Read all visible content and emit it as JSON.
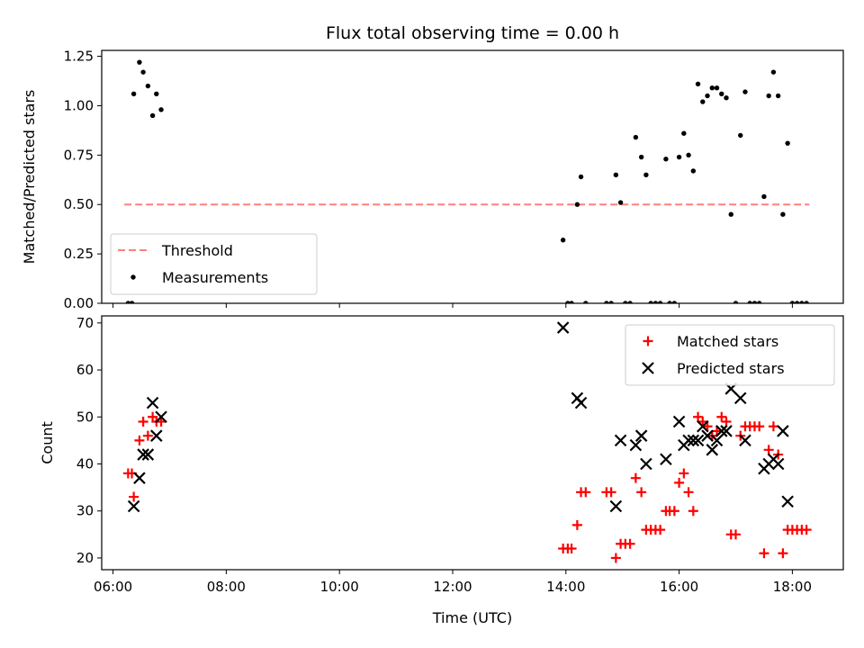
{
  "chart_data": [
    {
      "type": "scatter",
      "title": "Flux total observing time = 0.00 h",
      "xlabel": "",
      "ylabel": "Matched/Predicted stars",
      "xlim": [
        "05:48",
        "18:54"
      ],
      "ylim": [
        0,
        1.28
      ],
      "xticks": [
        "06:00",
        "08:00",
        "10:00",
        "12:00",
        "14:00",
        "16:00",
        "18:00"
      ],
      "yticks": [
        "0.00",
        "0.25",
        "0.50",
        "0.75",
        "1.00",
        "1.25"
      ],
      "legend_position": "lower-left",
      "threshold": {
        "name": "Threshold",
        "value": 0.5,
        "x_start": "06:12",
        "x_end": "18:18",
        "color": "#ff7f7f",
        "style": "dashed"
      },
      "series": [
        {
          "name": "Measurements",
          "color": "#000000",
          "marker": "dot",
          "points": [
            [
              "06:16",
              0.0
            ],
            [
              "06:20",
              0.0
            ],
            [
              "06:22",
              1.06
            ],
            [
              "06:28",
              1.22
            ],
            [
              "06:32",
              1.17
            ],
            [
              "06:37",
              1.1
            ],
            [
              "06:42",
              0.95
            ],
            [
              "06:46",
              1.06
            ],
            [
              "06:51",
              0.98
            ],
            [
              "13:57",
              0.32
            ],
            [
              "14:02",
              0.0
            ],
            [
              "14:06",
              0.0
            ],
            [
              "14:12",
              0.5
            ],
            [
              "14:16",
              0.64
            ],
            [
              "14:21",
              0.0
            ],
            [
              "14:43",
              0.0
            ],
            [
              "14:48",
              0.0
            ],
            [
              "14:53",
              0.65
            ],
            [
              "14:58",
              0.51
            ],
            [
              "15:03",
              0.0
            ],
            [
              "15:08",
              0.0
            ],
            [
              "15:14",
              0.84
            ],
            [
              "15:20",
              0.74
            ],
            [
              "15:25",
              0.65
            ],
            [
              "15:30",
              0.0
            ],
            [
              "15:35",
              0.0
            ],
            [
              "15:40",
              0.0
            ],
            [
              "15:46",
              0.73
            ],
            [
              "15:50",
              0.0
            ],
            [
              "15:55",
              0.0
            ],
            [
              "16:00",
              0.74
            ],
            [
              "16:05",
              0.86
            ],
            [
              "16:10",
              0.75
            ],
            [
              "16:15",
              0.67
            ],
            [
              "16:20",
              1.11
            ],
            [
              "16:25",
              1.02
            ],
            [
              "16:30",
              1.05
            ],
            [
              "16:35",
              1.09
            ],
            [
              "16:40",
              1.09
            ],
            [
              "16:45",
              1.06
            ],
            [
              "16:50",
              1.04
            ],
            [
              "16:55",
              0.45
            ],
            [
              "17:00",
              0.0
            ],
            [
              "17:05",
              0.85
            ],
            [
              "17:10",
              1.07
            ],
            [
              "17:15",
              0.0
            ],
            [
              "17:20",
              0.0
            ],
            [
              "17:25",
              0.0
            ],
            [
              "17:30",
              0.54
            ],
            [
              "17:35",
              1.05
            ],
            [
              "17:40",
              1.17
            ],
            [
              "17:45",
              1.05
            ],
            [
              "17:50",
              0.45
            ],
            [
              "17:55",
              0.81
            ],
            [
              "18:00",
              0.0
            ],
            [
              "18:05",
              0.0
            ],
            [
              "18:10",
              0.0
            ],
            [
              "18:15",
              0.0
            ]
          ]
        }
      ]
    },
    {
      "type": "scatter",
      "title": "",
      "xlabel": "Time (UTC)",
      "ylabel": "Count",
      "xlim": [
        "05:48",
        "18:54"
      ],
      "ylim": [
        17.5,
        71.5
      ],
      "xticks": [
        "06:00",
        "08:00",
        "10:00",
        "12:00",
        "14:00",
        "16:00",
        "18:00"
      ],
      "yticks": [
        "20",
        "30",
        "40",
        "50",
        "60",
        "70"
      ],
      "legend_position": "top-right",
      "series": [
        {
          "name": "Matched stars",
          "color": "#ff0000",
          "marker": "plus",
          "points": [
            [
              "06:16",
              38
            ],
            [
              "06:20",
              38
            ],
            [
              "06:22",
              33
            ],
            [
              "06:28",
              45
            ],
            [
              "06:32",
              49
            ],
            [
              "06:37",
              46
            ],
            [
              "06:42",
              50
            ],
            [
              "06:46",
              49
            ],
            [
              "06:51",
              49
            ],
            [
              "13:57",
              22
            ],
            [
              "14:02",
              22
            ],
            [
              "14:06",
              22
            ],
            [
              "14:12",
              27
            ],
            [
              "14:16",
              34
            ],
            [
              "14:21",
              34
            ],
            [
              "14:43",
              34
            ],
            [
              "14:48",
              34
            ],
            [
              "14:53",
              20
            ],
            [
              "14:58",
              23
            ],
            [
              "15:03",
              23
            ],
            [
              "15:08",
              23
            ],
            [
              "15:14",
              37
            ],
            [
              "15:20",
              34
            ],
            [
              "15:25",
              26
            ],
            [
              "15:30",
              26
            ],
            [
              "15:35",
              26
            ],
            [
              "15:40",
              26
            ],
            [
              "15:46",
              30
            ],
            [
              "15:50",
              30
            ],
            [
              "15:55",
              30
            ],
            [
              "16:00",
              36
            ],
            [
              "16:05",
              38
            ],
            [
              "16:10",
              34
            ],
            [
              "16:15",
              30
            ],
            [
              "16:20",
              50
            ],
            [
              "16:25",
              49
            ],
            [
              "16:30",
              48
            ],
            [
              "16:35",
              46
            ],
            [
              "16:40",
              47
            ],
            [
              "16:45",
              50
            ],
            [
              "16:50",
              49
            ],
            [
              "16:55",
              25
            ],
            [
              "17:00",
              25
            ],
            [
              "17:05",
              46
            ],
            [
              "17:10",
              48
            ],
            [
              "17:15",
              48
            ],
            [
              "17:20",
              48
            ],
            [
              "17:25",
              48
            ],
            [
              "17:30",
              21
            ],
            [
              "17:35",
              43
            ],
            [
              "17:40",
              48
            ],
            [
              "17:45",
              42
            ],
            [
              "17:50",
              21
            ],
            [
              "17:55",
              26
            ],
            [
              "18:00",
              26
            ],
            [
              "18:05",
              26
            ],
            [
              "18:10",
              26
            ],
            [
              "18:15",
              26
            ]
          ]
        },
        {
          "name": "Predicted stars",
          "color": "#000000",
          "marker": "x",
          "points": [
            [
              "06:22",
              31
            ],
            [
              "06:28",
              37
            ],
            [
              "06:32",
              42
            ],
            [
              "06:37",
              42
            ],
            [
              "06:42",
              53
            ],
            [
              "06:46",
              46
            ],
            [
              "06:51",
              50
            ],
            [
              "13:57",
              69
            ],
            [
              "14:12",
              54
            ],
            [
              "14:16",
              53
            ],
            [
              "14:53",
              31
            ],
            [
              "14:58",
              45
            ],
            [
              "15:14",
              44
            ],
            [
              "15:20",
              46
            ],
            [
              "15:25",
              40
            ],
            [
              "15:46",
              41
            ],
            [
              "16:00",
              49
            ],
            [
              "16:05",
              44
            ],
            [
              "16:10",
              45
            ],
            [
              "16:15",
              45
            ],
            [
              "16:20",
              45
            ],
            [
              "16:25",
              48
            ],
            [
              "16:30",
              46
            ],
            [
              "16:35",
              43
            ],
            [
              "16:40",
              45
            ],
            [
              "16:45",
              47
            ],
            [
              "16:50",
              47
            ],
            [
              "16:55",
              56
            ],
            [
              "17:05",
              54
            ],
            [
              "17:10",
              45
            ],
            [
              "17:30",
              39
            ],
            [
              "17:35",
              40
            ],
            [
              "17:40",
              41
            ],
            [
              "17:45",
              40
            ],
            [
              "17:50",
              47
            ],
            [
              "17:55",
              32
            ]
          ]
        }
      ]
    }
  ]
}
